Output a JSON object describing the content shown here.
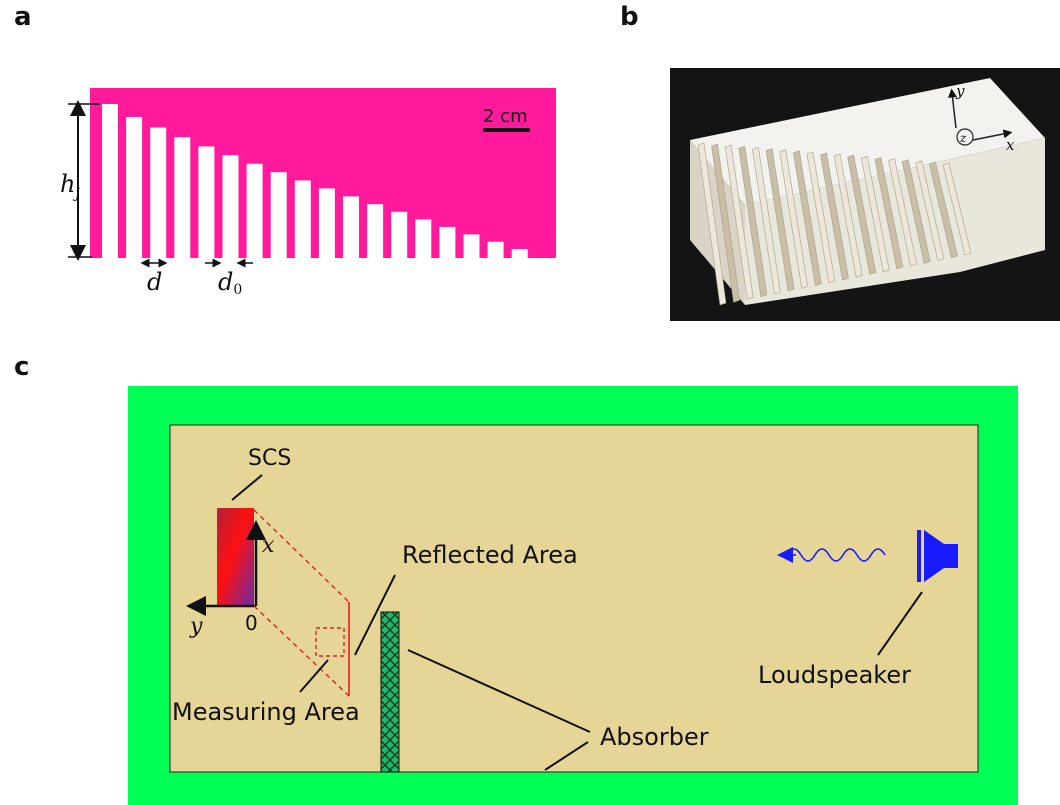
{
  "panels": {
    "a": "a",
    "b": "b",
    "c": "c"
  },
  "panel_a": {
    "scale_bar": "2 cm",
    "height_symbol": "h",
    "height_subscript": "j",
    "spacing_label": "d",
    "gap_symbol": "d",
    "gap_subscript": "0",
    "fin_count": 18,
    "colors": {
      "background": "#ff1a9c",
      "fins": "#ffffff"
    }
  },
  "panel_b": {
    "axis_y": "y",
    "axis_x": "x",
    "axis_z": "z"
  },
  "panel_c": {
    "scs_label": "SCS",
    "axis_x": "x",
    "axis_y": "y",
    "origin": "0",
    "reflected_area": "Reflected Area",
    "measuring_area": "Measuring Area",
    "loudspeaker": "Loudspeaker",
    "absorber": "Absorber",
    "colors": {
      "outer": "#00ff55",
      "room": "#e5d597",
      "speaker": "#1a1aff",
      "marker": "#e02020"
    }
  }
}
